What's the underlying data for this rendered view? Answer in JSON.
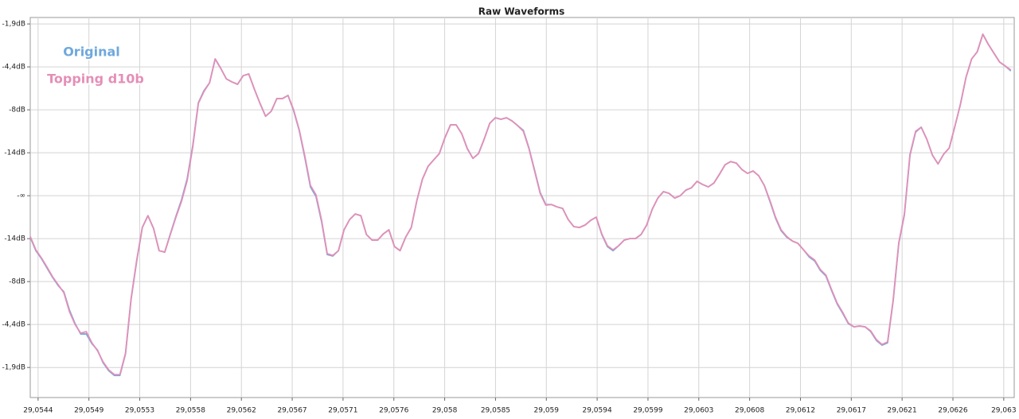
{
  "chart_data": {
    "type": "line",
    "title": "Raw Waveforms",
    "x": [
      29.05435,
      29.0544,
      29.05445,
      29.0545,
      29.05455,
      29.0546,
      29.05465,
      29.0547,
      29.05475,
      29.0548,
      29.05485,
      29.0549,
      29.05495,
      29.055,
      29.05505,
      29.0551,
      29.05515,
      29.0552,
      29.05525,
      29.0553,
      29.05535,
      29.0554,
      29.05545,
      29.0555,
      29.05555,
      29.0556,
      29.05565,
      29.0557,
      29.05575,
      29.0558,
      29.05585,
      29.0559,
      29.05595,
      29.056,
      29.05605,
      29.0561,
      29.05615,
      29.0562,
      29.05625,
      29.0563,
      29.05635,
      29.0564,
      29.05645,
      29.0565,
      29.05655,
      29.0566,
      29.05665,
      29.0567,
      29.05675,
      29.0568,
      29.05685,
      29.0569,
      29.05695,
      29.057,
      29.05705,
      29.0571,
      29.05715,
      29.0572,
      29.05725,
      29.0573,
      29.05735,
      29.0574,
      29.05745,
      29.0575,
      29.05755,
      29.0576,
      29.05765,
      29.0577,
      29.05775,
      29.0578,
      29.05785,
      29.0579,
      29.05795,
      29.058,
      29.05805,
      29.0581,
      29.05815,
      29.0582,
      29.05825,
      29.0583,
      29.05835,
      29.0584,
      29.05845,
      29.0585,
      29.05855,
      29.0586,
      29.05865,
      29.0587,
      29.05875,
      29.0588,
      29.05885,
      29.0589,
      29.05895,
      29.059,
      29.05905,
      29.0591,
      29.05915,
      29.0592,
      29.05925,
      29.0593,
      29.05935,
      29.0594,
      29.05945,
      29.0595,
      29.05955,
      29.0596,
      29.05965,
      29.0597,
      29.05975,
      29.0598,
      29.05985,
      29.0599,
      29.05995,
      29.06,
      29.06005,
      29.0601,
      29.06015,
      29.0602,
      29.06025,
      29.0603,
      29.06035,
      29.0604,
      29.06045,
      29.0605,
      29.06055,
      29.0606,
      29.06065,
      29.0607,
      29.06075,
      29.0608,
      29.06085,
      29.0609,
      29.06095,
      29.061,
      29.06105,
      29.0611,
      29.06115,
      29.0612,
      29.06125,
      29.0613,
      29.06135,
      29.0614,
      29.06145,
      29.0615,
      29.06155,
      29.0616,
      29.06165,
      29.0617,
      29.06175,
      29.0618,
      29.06185,
      29.0619,
      29.06195,
      29.062,
      29.06205,
      29.0621,
      29.06215,
      29.0622,
      29.06225,
      29.0623,
      29.06235,
      29.0624,
      29.06245,
      29.0625,
      29.06255,
      29.0626,
      29.06265,
      29.0627,
      29.06275,
      29.0628,
      29.06285,
      29.0629,
      29.06295,
      29.063,
      29.06305,
      29.0631
    ],
    "series": [
      {
        "name": "Original",
        "color": "#6fa8dc",
        "values": [
          -0.193,
          -0.256,
          -0.293,
          -0.337,
          -0.381,
          -0.419,
          -0.448,
          -0.533,
          -0.596,
          -0.644,
          -0.644,
          -0.689,
          -0.719,
          -0.778,
          -0.815,
          -0.837,
          -0.837,
          -0.737,
          -0.481,
          -0.304,
          -0.148,
          -0.093,
          -0.152,
          -0.256,
          -0.263,
          -0.178,
          -0.096,
          -0.019,
          0.078,
          0.233,
          0.433,
          0.489,
          0.526,
          0.637,
          0.593,
          0.544,
          0.53,
          0.519,
          0.559,
          0.567,
          0.496,
          0.43,
          0.37,
          0.393,
          0.452,
          0.452,
          0.467,
          0.396,
          0.304,
          0.178,
          0.041,
          -0.004,
          -0.122,
          -0.274,
          -0.281,
          -0.256,
          -0.159,
          -0.111,
          -0.085,
          -0.093,
          -0.181,
          -0.207,
          -0.207,
          -0.178,
          -0.159,
          -0.237,
          -0.256,
          -0.193,
          -0.148,
          -0.022,
          0.078,
          0.137,
          0.167,
          0.196,
          0.27,
          0.33,
          0.33,
          0.289,
          0.219,
          0.174,
          0.196,
          0.263,
          0.337,
          0.363,
          0.356,
          0.363,
          0.348,
          0.326,
          0.304,
          0.222,
          0.119,
          0.015,
          -0.041,
          -0.041,
          -0.052,
          -0.059,
          -0.111,
          -0.144,
          -0.148,
          -0.137,
          -0.115,
          -0.1,
          -0.181,
          -0.237,
          -0.256,
          -0.233,
          -0.207,
          -0.2,
          -0.2,
          -0.181,
          -0.137,
          -0.063,
          -0.011,
          0.019,
          0.011,
          -0.011,
          0,
          0.026,
          0.037,
          0.067,
          0.052,
          0.041,
          0.059,
          0.1,
          0.144,
          0.159,
          0.152,
          0.122,
          0.104,
          0.115,
          0.093,
          0.048,
          -0.026,
          -0.104,
          -0.163,
          -0.193,
          -0.211,
          -0.222,
          -0.252,
          -0.285,
          -0.304,
          -0.348,
          -0.374,
          -0.441,
          -0.504,
          -0.548,
          -0.596,
          -0.611,
          -0.607,
          -0.611,
          -0.633,
          -0.674,
          -0.696,
          -0.685,
          -0.489,
          -0.222,
          -0.089,
          0.189,
          0.296,
          0.319,
          0.263,
          0.189,
          0.148,
          0.193,
          0.222,
          0.322,
          0.426,
          0.552,
          0.637,
          0.67,
          0.752,
          0.704,
          0.663,
          0.622,
          0.604,
          0.581
        ]
      },
      {
        "name": "Topping d10b",
        "color": "#e48fb7",
        "values": [
          -0.19,
          -0.252,
          -0.29,
          -0.333,
          -0.378,
          -0.415,
          -0.452,
          -0.54,
          -0.6,
          -0.64,
          -0.633,
          -0.685,
          -0.722,
          -0.774,
          -0.811,
          -0.833,
          -0.833,
          -0.733,
          -0.478,
          -0.3,
          -0.148,
          -0.093,
          -0.152,
          -0.256,
          -0.263,
          -0.181,
          -0.1,
          -0.026,
          0.07,
          0.226,
          0.43,
          0.485,
          0.526,
          0.637,
          0.593,
          0.544,
          0.53,
          0.519,
          0.559,
          0.567,
          0.496,
          0.43,
          0.37,
          0.393,
          0.452,
          0.452,
          0.467,
          0.4,
          0.307,
          0.185,
          0.048,
          0.004,
          -0.115,
          -0.27,
          -0.278,
          -0.256,
          -0.159,
          -0.111,
          -0.085,
          -0.093,
          -0.181,
          -0.207,
          -0.207,
          -0.178,
          -0.159,
          -0.237,
          -0.256,
          -0.193,
          -0.148,
          -0.022,
          0.078,
          0.137,
          0.167,
          0.196,
          0.27,
          0.33,
          0.33,
          0.289,
          0.219,
          0.174,
          0.196,
          0.263,
          0.337,
          0.363,
          0.356,
          0.363,
          0.348,
          0.326,
          0.3,
          0.219,
          0.115,
          0.011,
          -0.044,
          -0.041,
          -0.052,
          -0.059,
          -0.111,
          -0.144,
          -0.148,
          -0.137,
          -0.115,
          -0.1,
          -0.178,
          -0.233,
          -0.252,
          -0.233,
          -0.207,
          -0.2,
          -0.2,
          -0.181,
          -0.137,
          -0.063,
          -0.011,
          0.019,
          0.011,
          -0.011,
          0,
          0.026,
          0.037,
          0.067,
          0.052,
          0.041,
          0.059,
          0.1,
          0.144,
          0.159,
          0.152,
          0.122,
          0.104,
          0.115,
          0.093,
          0.048,
          -0.022,
          -0.1,
          -0.159,
          -0.19,
          -0.211,
          -0.222,
          -0.252,
          -0.281,
          -0.3,
          -0.344,
          -0.37,
          -0.437,
          -0.5,
          -0.544,
          -0.593,
          -0.611,
          -0.607,
          -0.611,
          -0.63,
          -0.67,
          -0.693,
          -0.681,
          -0.485,
          -0.219,
          -0.085,
          0.193,
          0.3,
          0.319,
          0.263,
          0.189,
          0.148,
          0.193,
          0.222,
          0.322,
          0.426,
          0.552,
          0.637,
          0.67,
          0.752,
          0.704,
          0.663,
          0.622,
          0.604,
          0.585
        ]
      }
    ],
    "xlim": [
      29.05435,
      29.06313
    ],
    "ylim": [
      -0.94,
      0.83
    ],
    "xticks": [
      {
        "value": 29.05442,
        "label": "29,0544"
      },
      {
        "value": 29.0548735,
        "label": "29,0549"
      },
      {
        "value": 29.055327,
        "label": "29,0553"
      },
      {
        "value": 29.0557805,
        "label": "29,0558"
      },
      {
        "value": 29.056234,
        "label": "29,0562"
      },
      {
        "value": 29.0566875,
        "label": "29,0567"
      },
      {
        "value": 29.057141,
        "label": "29,0571"
      },
      {
        "value": 29.0575945,
        "label": "29,0576"
      },
      {
        "value": 29.058048,
        "label": "29,058"
      },
      {
        "value": 29.0585015,
        "label": "29,0585"
      },
      {
        "value": 29.058955,
        "label": "29,059"
      },
      {
        "value": 29.0594085,
        "label": "29,0594"
      },
      {
        "value": 29.059862,
        "label": "29,0599"
      },
      {
        "value": 29.0603155,
        "label": "29,0603"
      },
      {
        "value": 29.060769,
        "label": "29,0608"
      },
      {
        "value": 29.0612225,
        "label": "29,0612"
      },
      {
        "value": 29.061676,
        "label": "29,0617"
      },
      {
        "value": 29.0621295,
        "label": "29,0621"
      },
      {
        "value": 29.062583,
        "label": "29,0626"
      },
      {
        "value": 29.0630365,
        "label": "29,063"
      }
    ],
    "yticks": [
      {
        "value": 0.8,
        "label": "-1,9dB"
      },
      {
        "value": 0.6,
        "label": "-4,4dB"
      },
      {
        "value": 0.4,
        "label": "-8dB"
      },
      {
        "value": 0.2,
        "label": "-14dB"
      },
      {
        "value": 0,
        "label": "-∞"
      },
      {
        "value": -0.2,
        "label": "-14dB"
      },
      {
        "value": -0.4,
        "label": "-8dB"
      },
      {
        "value": -0.6,
        "label": "-4,4dB"
      },
      {
        "value": -0.8,
        "label": "-1,9dB"
      }
    ],
    "grid": true
  }
}
